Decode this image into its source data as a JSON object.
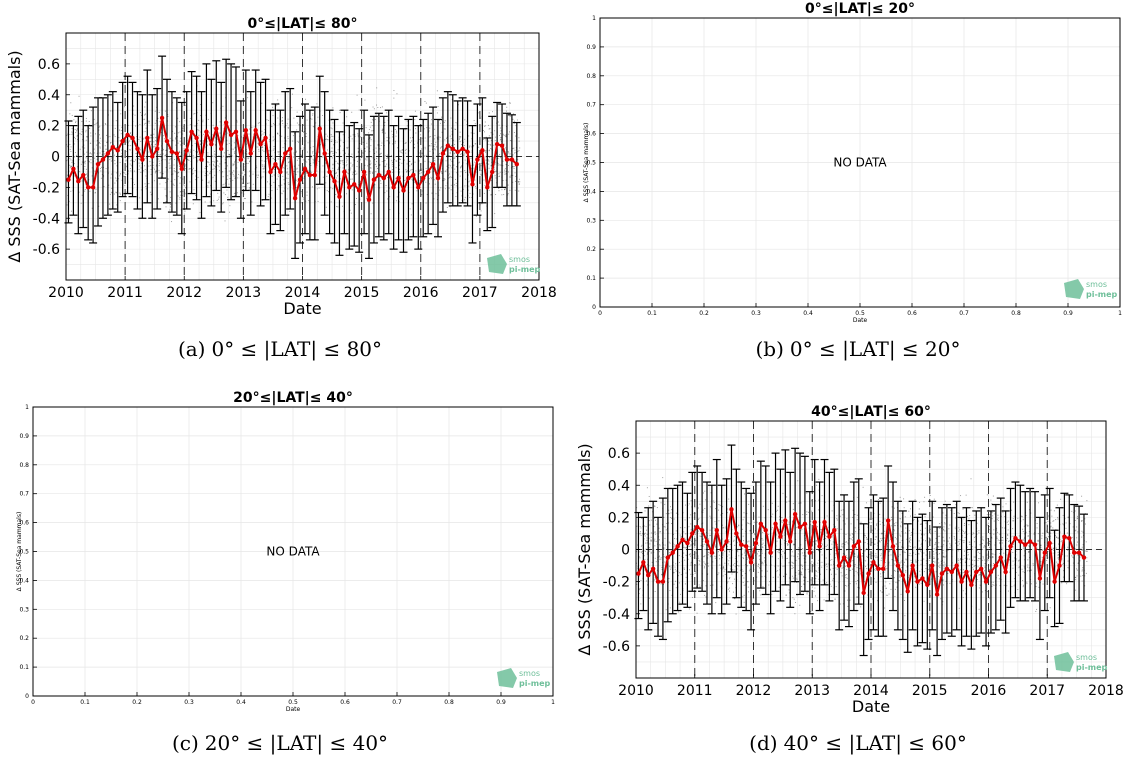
{
  "figure": {
    "captions": [
      {
        "label": "(a)",
        "text": "0° ≤ |LAT| ≤ 80°"
      },
      {
        "label": "(b)",
        "text": "0° ≤ |LAT| ≤ 20°"
      },
      {
        "label": "(c)",
        "text": "20° ≤ |LAT| ≤ 40°"
      },
      {
        "label": "(d)",
        "text": "40° ≤ |LAT| ≤ 60°"
      }
    ],
    "logo": {
      "line1": "smos",
      "line2": "pi-mep",
      "color": "#6fbf9a"
    },
    "colors": {
      "mean_line": "#e00000",
      "error_bars": "#000000",
      "scatter": "#555555",
      "grid": "#e6e6e6"
    }
  },
  "chart_data": [
    {
      "type": "line",
      "title": "0°≤|LAT|≤ 80°",
      "xlabel": "Date",
      "ylabel": "Δ SSS (SAT-Sea mammals)",
      "xlim": [
        2010,
        2018
      ],
      "ylim": [
        -0.8,
        0.8
      ],
      "xticks": [
        "2010",
        "2011",
        "2012",
        "2013",
        "2014",
        "2015",
        "2016",
        "2017",
        "2018"
      ],
      "yticks": [
        "-0.6",
        "-0.4",
        "-0.2",
        "0",
        "0.2",
        "0.4",
        "0.6"
      ],
      "dashed_year_lines": [
        2011,
        2012,
        2013,
        2014,
        2015,
        2016,
        2017
      ],
      "grid": true,
      "series": [
        {
          "x": [
            "2010-01",
            "2010-02",
            "2010-03",
            "2010-04",
            "2010-05",
            "2010-06",
            "2010-07",
            "2010-08",
            "2010-09",
            "2010-10",
            "2010-11",
            "2010-12",
            "2011-01",
            "2011-02",
            "2011-03",
            "2011-04",
            "2011-05",
            "2011-06",
            "2011-07",
            "2011-08",
            "2011-09",
            "2011-10",
            "2011-11",
            "2011-12",
            "2012-01",
            "2012-02",
            "2012-03",
            "2012-04",
            "2012-05",
            "2012-06",
            "2012-07",
            "2012-08",
            "2012-09",
            "2012-10",
            "2012-11",
            "2012-12",
            "2013-01",
            "2013-02",
            "2013-03",
            "2013-04",
            "2013-05",
            "2013-06",
            "2013-07",
            "2013-08",
            "2013-09",
            "2013-10",
            "2013-11",
            "2013-12",
            "2014-01",
            "2014-02",
            "2014-03",
            "2014-04",
            "2014-05",
            "2014-06",
            "2014-07",
            "2014-08",
            "2014-09",
            "2014-10",
            "2014-11",
            "2014-12",
            "2015-01",
            "2015-02",
            "2015-03",
            "2015-04",
            "2015-05",
            "2015-06",
            "2015-07",
            "2015-08",
            "2015-09",
            "2015-10",
            "2015-11",
            "2015-12",
            "2016-01",
            "2016-02",
            "2016-03",
            "2016-04",
            "2016-05",
            "2016-06",
            "2016-07",
            "2016-08",
            "2016-09",
            "2016-10",
            "2016-11",
            "2016-12",
            "2017-01",
            "2017-02",
            "2017-03",
            "2017-04",
            "2017-05",
            "2017-06",
            "2017-07",
            "2017-08"
          ],
          "mean": [
            -0.15,
            -0.08,
            -0.16,
            -0.12,
            -0.2,
            -0.2,
            -0.05,
            -0.02,
            0.02,
            0.06,
            0.04,
            0.1,
            0.14,
            0.12,
            0.05,
            -0.02,
            0.12,
            0.0,
            0.05,
            0.25,
            0.1,
            0.03,
            0.02,
            -0.08,
            0.04,
            0.16,
            0.12,
            -0.02,
            0.16,
            0.08,
            0.18,
            0.05,
            0.22,
            0.14,
            0.16,
            -0.02,
            0.17,
            0.02,
            0.17,
            0.08,
            0.12,
            -0.1,
            -0.05,
            -0.1,
            0.02,
            0.05,
            -0.27,
            -0.15,
            -0.08,
            -0.12,
            -0.12,
            0.18,
            0.02,
            -0.1,
            -0.16,
            -0.26,
            -0.1,
            -0.2,
            -0.18,
            -0.22,
            -0.1,
            -0.28,
            -0.15,
            -0.12,
            -0.14,
            -0.1,
            -0.2,
            -0.14,
            -0.22,
            -0.14,
            -0.12,
            -0.2,
            -0.14,
            -0.1,
            -0.05,
            -0.14,
            0.02,
            0.07,
            0.05,
            0.03,
            0.05,
            0.03,
            -0.18,
            -0.02,
            0.04,
            -0.2,
            -0.1,
            0.08,
            0.07,
            -0.02,
            -0.02,
            -0.05
          ],
          "upper": [
            0.23,
            0.2,
            0.26,
            0.3,
            0.2,
            0.32,
            0.38,
            0.38,
            0.4,
            0.42,
            0.35,
            0.48,
            0.52,
            0.48,
            0.42,
            0.4,
            0.56,
            0.4,
            0.44,
            0.65,
            0.5,
            0.42,
            0.38,
            0.35,
            0.42,
            0.55,
            0.52,
            0.42,
            0.6,
            0.5,
            0.62,
            0.48,
            0.63,
            0.6,
            0.58,
            0.36,
            0.56,
            0.42,
            0.56,
            0.48,
            0.5,
            0.3,
            0.34,
            0.3,
            0.42,
            0.44,
            0.16,
            0.26,
            0.34,
            0.3,
            0.32,
            0.52,
            0.42,
            0.3,
            0.24,
            0.16,
            0.3,
            0.2,
            0.22,
            0.18,
            0.3,
            0.14,
            0.26,
            0.28,
            0.26,
            0.3,
            0.2,
            0.26,
            0.18,
            0.24,
            0.26,
            0.2,
            0.24,
            0.28,
            0.32,
            0.24,
            0.38,
            0.42,
            0.4,
            0.36,
            0.38,
            0.36,
            0.2,
            0.34,
            0.38,
            0.12,
            0.26,
            0.35,
            0.34,
            0.28,
            0.27,
            0.22
          ],
          "lower": [
            -0.43,
            -0.38,
            -0.5,
            -0.46,
            -0.54,
            -0.56,
            -0.45,
            -0.4,
            -0.38,
            -0.34,
            -0.36,
            -0.26,
            -0.24,
            -0.26,
            -0.34,
            -0.4,
            -0.3,
            -0.4,
            -0.34,
            -0.14,
            -0.3,
            -0.36,
            -0.38,
            -0.5,
            -0.34,
            -0.24,
            -0.28,
            -0.4,
            -0.26,
            -0.32,
            -0.22,
            -0.36,
            -0.2,
            -0.28,
            -0.26,
            -0.4,
            -0.22,
            -0.38,
            -0.22,
            -0.32,
            -0.28,
            -0.5,
            -0.44,
            -0.48,
            -0.38,
            -0.34,
            -0.66,
            -0.56,
            -0.5,
            -0.54,
            -0.54,
            -0.18,
            -0.38,
            -0.5,
            -0.56,
            -0.64,
            -0.5,
            -0.6,
            -0.58,
            -0.62,
            -0.5,
            -0.66,
            -0.56,
            -0.52,
            -0.54,
            -0.5,
            -0.6,
            -0.54,
            -0.62,
            -0.54,
            -0.52,
            -0.6,
            -0.52,
            -0.5,
            -0.44,
            -0.52,
            -0.36,
            -0.3,
            -0.32,
            -0.32,
            -0.3,
            -0.32,
            -0.56,
            -0.38,
            -0.3,
            -0.48,
            -0.46,
            -0.2,
            -0.2,
            -0.32,
            -0.32,
            -0.32
          ]
        }
      ]
    },
    {
      "type": "line",
      "title": "0°≤|LAT|≤ 20°",
      "xlabel": "Date",
      "ylabel": "Δ SSS (SAT-Sea mammals)",
      "xlim": [
        0,
        1
      ],
      "ylim": [
        0,
        1
      ],
      "xticks": [
        "0",
        "0.1",
        "0.2",
        "0.3",
        "0.4",
        "0.5",
        "0.6",
        "0.7",
        "0.8",
        "0.9",
        "1"
      ],
      "yticks": [
        "0",
        "0.1",
        "0.2",
        "0.3",
        "0.4",
        "0.5",
        "0.6",
        "0.7",
        "0.8",
        "0.9",
        "1"
      ],
      "annotation": "NO DATA",
      "grid": true,
      "series": []
    },
    {
      "type": "line",
      "title": "20°≤|LAT|≤ 40°",
      "xlabel": "Date",
      "ylabel": "Δ SSS (SAT-Sea mammals)",
      "xlim": [
        0,
        1
      ],
      "ylim": [
        0,
        1
      ],
      "xticks": [
        "0",
        "0.1",
        "0.2",
        "0.3",
        "0.4",
        "0.5",
        "0.6",
        "0.7",
        "0.8",
        "0.9",
        "1"
      ],
      "yticks": [
        "0",
        "0.1",
        "0.2",
        "0.3",
        "0.4",
        "0.5",
        "0.6",
        "0.7",
        "0.8",
        "0.9",
        "1"
      ],
      "annotation": "NO DATA",
      "grid": true,
      "series": []
    },
    {
      "type": "line",
      "title": "40°≤|LAT|≤ 60°",
      "xlabel": "Date",
      "ylabel": "Δ SSS (SAT-Sea mammals)",
      "xlim": [
        2010,
        2018
      ],
      "ylim": [
        -0.8,
        0.8
      ],
      "xticks": [
        "2010",
        "2011",
        "2012",
        "2013",
        "2014",
        "2015",
        "2016",
        "2017",
        "2018"
      ],
      "yticks": [
        "-0.6",
        "-0.4",
        "-0.2",
        "0",
        "0.2",
        "0.4",
        "0.6"
      ],
      "dashed_year_lines": [
        2011,
        2012,
        2013,
        2014,
        2015,
        2016,
        2017
      ],
      "grid": true,
      "series": [
        {
          "x": [
            "2010-01",
            "2010-02",
            "2010-03",
            "2010-04",
            "2010-05",
            "2010-06",
            "2010-07",
            "2010-08",
            "2010-09",
            "2010-10",
            "2010-11",
            "2010-12",
            "2011-01",
            "2011-02",
            "2011-03",
            "2011-04",
            "2011-05",
            "2011-06",
            "2011-07",
            "2011-08",
            "2011-09",
            "2011-10",
            "2011-11",
            "2011-12",
            "2012-01",
            "2012-02",
            "2012-03",
            "2012-04",
            "2012-05",
            "2012-06",
            "2012-07",
            "2012-08",
            "2012-09",
            "2012-10",
            "2012-11",
            "2012-12",
            "2013-01",
            "2013-02",
            "2013-03",
            "2013-04",
            "2013-05",
            "2013-06",
            "2013-07",
            "2013-08",
            "2013-09",
            "2013-10",
            "2013-11",
            "2013-12",
            "2014-01",
            "2014-02",
            "2014-03",
            "2014-04",
            "2014-05",
            "2014-06",
            "2014-07",
            "2014-08",
            "2014-09",
            "2014-10",
            "2014-11",
            "2014-12",
            "2015-01",
            "2015-02",
            "2015-03",
            "2015-04",
            "2015-05",
            "2015-06",
            "2015-07",
            "2015-08",
            "2015-09",
            "2015-10",
            "2015-11",
            "2015-12",
            "2016-01",
            "2016-02",
            "2016-03",
            "2016-04",
            "2016-05",
            "2016-06",
            "2016-07",
            "2016-08",
            "2016-09",
            "2016-10",
            "2016-11",
            "2016-12",
            "2017-01",
            "2017-02",
            "2017-03",
            "2017-04",
            "2017-05",
            "2017-06",
            "2017-07",
            "2017-08"
          ],
          "mean": [
            -0.15,
            -0.08,
            -0.16,
            -0.12,
            -0.2,
            -0.2,
            -0.05,
            -0.02,
            0.02,
            0.06,
            0.04,
            0.1,
            0.14,
            0.12,
            0.05,
            -0.02,
            0.12,
            0.0,
            0.05,
            0.25,
            0.1,
            0.03,
            0.02,
            -0.08,
            0.04,
            0.16,
            0.12,
            -0.02,
            0.16,
            0.08,
            0.18,
            0.05,
            0.22,
            0.14,
            0.16,
            -0.02,
            0.17,
            0.02,
            0.17,
            0.08,
            0.12,
            -0.1,
            -0.05,
            -0.1,
            0.02,
            0.05,
            -0.27,
            -0.15,
            -0.08,
            -0.12,
            -0.12,
            0.18,
            0.02,
            -0.1,
            -0.16,
            -0.26,
            -0.1,
            -0.2,
            -0.18,
            -0.22,
            -0.1,
            -0.28,
            -0.15,
            -0.12,
            -0.14,
            -0.1,
            -0.2,
            -0.14,
            -0.22,
            -0.14,
            -0.12,
            -0.2,
            -0.14,
            -0.1,
            -0.05,
            -0.14,
            0.02,
            0.07,
            0.05,
            0.03,
            0.05,
            0.03,
            -0.18,
            -0.02,
            0.04,
            -0.2,
            -0.1,
            0.08,
            0.07,
            -0.02,
            -0.02,
            -0.05
          ],
          "upper": [
            0.23,
            0.2,
            0.26,
            0.3,
            0.2,
            0.32,
            0.38,
            0.38,
            0.4,
            0.42,
            0.35,
            0.48,
            0.52,
            0.48,
            0.42,
            0.4,
            0.56,
            0.4,
            0.44,
            0.65,
            0.5,
            0.42,
            0.38,
            0.35,
            0.42,
            0.55,
            0.52,
            0.42,
            0.6,
            0.5,
            0.62,
            0.48,
            0.63,
            0.6,
            0.58,
            0.36,
            0.56,
            0.42,
            0.56,
            0.48,
            0.5,
            0.3,
            0.34,
            0.3,
            0.42,
            0.44,
            0.16,
            0.26,
            0.34,
            0.3,
            0.32,
            0.52,
            0.42,
            0.3,
            0.24,
            0.16,
            0.3,
            0.2,
            0.22,
            0.18,
            0.3,
            0.14,
            0.26,
            0.28,
            0.26,
            0.3,
            0.2,
            0.26,
            0.18,
            0.24,
            0.26,
            0.2,
            0.24,
            0.28,
            0.32,
            0.24,
            0.38,
            0.42,
            0.4,
            0.36,
            0.38,
            0.36,
            0.2,
            0.34,
            0.38,
            0.12,
            0.26,
            0.35,
            0.34,
            0.28,
            0.27,
            0.22
          ],
          "lower": [
            -0.43,
            -0.38,
            -0.5,
            -0.46,
            -0.54,
            -0.56,
            -0.45,
            -0.4,
            -0.38,
            -0.34,
            -0.36,
            -0.26,
            -0.24,
            -0.26,
            -0.34,
            -0.4,
            -0.3,
            -0.4,
            -0.34,
            -0.14,
            -0.3,
            -0.36,
            -0.38,
            -0.5,
            -0.34,
            -0.24,
            -0.28,
            -0.4,
            -0.26,
            -0.32,
            -0.22,
            -0.36,
            -0.2,
            -0.28,
            -0.26,
            -0.4,
            -0.22,
            -0.38,
            -0.22,
            -0.32,
            -0.28,
            -0.5,
            -0.44,
            -0.48,
            -0.38,
            -0.34,
            -0.66,
            -0.56,
            -0.5,
            -0.54,
            -0.54,
            -0.18,
            -0.38,
            -0.5,
            -0.56,
            -0.64,
            -0.5,
            -0.6,
            -0.58,
            -0.62,
            -0.5,
            -0.66,
            -0.56,
            -0.52,
            -0.54,
            -0.5,
            -0.6,
            -0.54,
            -0.62,
            -0.54,
            -0.52,
            -0.6,
            -0.52,
            -0.5,
            -0.44,
            -0.52,
            -0.36,
            -0.3,
            -0.32,
            -0.32,
            -0.3,
            -0.32,
            -0.56,
            -0.38,
            -0.3,
            -0.48,
            -0.46,
            -0.2,
            -0.2,
            -0.32,
            -0.32,
            -0.32
          ]
        }
      ]
    }
  ]
}
